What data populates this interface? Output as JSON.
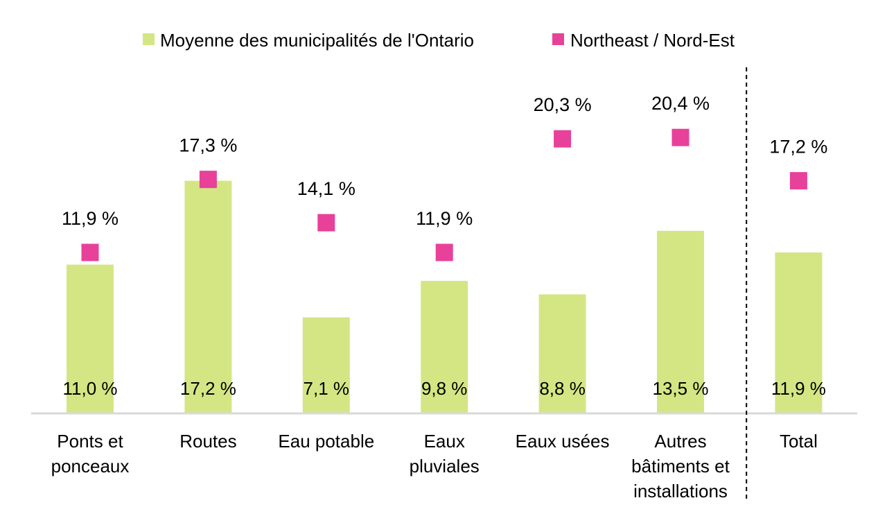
{
  "chart_data": {
    "type": "bar",
    "categories": [
      [
        "Ponts et",
        "ponceaux"
      ],
      [
        "Routes"
      ],
      [
        "Eau potable"
      ],
      [
        "Eaux",
        "pluviales"
      ],
      [
        "Eaux usées"
      ],
      [
        "Autres",
        "bâtiments et",
        "installations"
      ],
      [
        "Total"
      ]
    ],
    "series": [
      {
        "name": "Moyenne des municipalités de l'Ontario",
        "kind": "bar",
        "color": "#d4e683",
        "values": [
          11.0,
          17.2,
          7.1,
          9.8,
          8.8,
          13.5,
          11.9
        ],
        "labels": [
          "11,0 %",
          "17,2 %",
          "7,1 %",
          "9,8 %",
          "8,8 %",
          "13,5 %",
          "11,9 %"
        ]
      },
      {
        "name": "Northeast / Nord-Est",
        "kind": "marker",
        "color": "#e8419a",
        "values": [
          11.9,
          17.3,
          14.1,
          11.9,
          20.3,
          20.4,
          17.2
        ],
        "labels": [
          "11,9 %",
          "17,3 %",
          "14,1 %",
          "11,9 %",
          "20,3 %",
          "20,4 %",
          "17,2 %"
        ]
      }
    ],
    "ylim": [
      0,
      28
    ],
    "grid": false,
    "legend_position": "top",
    "separator_before_last": true,
    "axis_color": "#d9d9d9"
  }
}
